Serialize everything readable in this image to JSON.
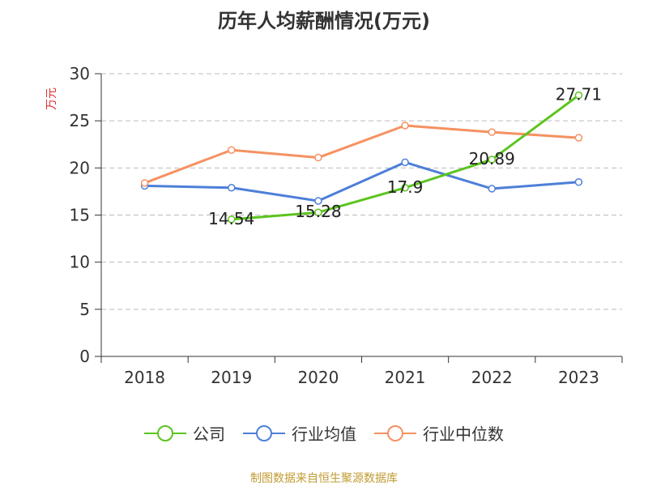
{
  "colors": {
    "company": "#5cc41f",
    "industry_avg": "#4d7fd8",
    "industry_median": "#f59161",
    "title": "#333333",
    "unit": "#e03232",
    "source": "#c19b32",
    "grid": "#bbbbbb"
  },
  "chart_data": {
    "type": "line",
    "title": "历年人均薪酬情况(万元)",
    "ylabel": "万元",
    "xlabel": "",
    "categories": [
      "2018",
      "2019",
      "2020",
      "2021",
      "2022",
      "2023"
    ],
    "ylim": [
      0,
      30
    ],
    "yticks": [
      0,
      5,
      10,
      15,
      20,
      25,
      30
    ],
    "grid": true,
    "legend_position": "bottom",
    "series": [
      {
        "name": "公司",
        "color_key": "company",
        "values": [
          null,
          14.54,
          15.28,
          17.9,
          20.89,
          27.71
        ],
        "data_labels": [
          "",
          "14.54",
          "15.28",
          "17.9",
          "20.89",
          "27.71"
        ]
      },
      {
        "name": "行业均值",
        "color_key": "industry_avg",
        "values": [
          18.1,
          17.9,
          16.5,
          20.6,
          17.8,
          18.5
        ]
      },
      {
        "name": "行业中位数",
        "color_key": "industry_median",
        "values": [
          18.4,
          21.9,
          21.1,
          24.5,
          23.8,
          23.2
        ]
      }
    ]
  },
  "source_text": "制图数据来自恒生聚源数据库"
}
